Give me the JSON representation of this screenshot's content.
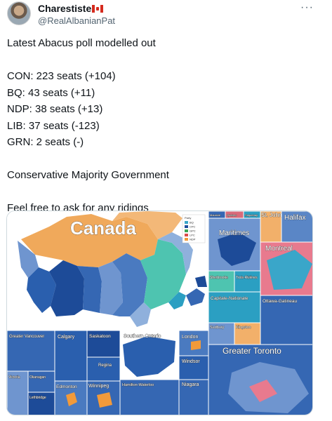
{
  "author": {
    "display_name": "Charestiste",
    "flag_icon": "canada-flag-icon",
    "handle": "@RealAlbanianPat"
  },
  "more_icon": "more-options-icon",
  "tweet": {
    "lines": [
      "Latest Abacus poll modelled out",
      "",
      "CON: 223 seats (+104)",
      "BQ: 43 seats (+11)",
      "NDP: 38 seats (+13)",
      "LIB: 37 seats (-123)",
      "GRN: 2 seats (-)",
      "",
      "Conservative Majority Government",
      "",
      "Feel free to ask for any ridings"
    ]
  },
  "map": {
    "main_title": "Canada",
    "legend": {
      "title": "Party",
      "entries": [
        "BQ",
        "CPC",
        "GPC",
        "LPC",
        "NDP"
      ],
      "colors": [
        "#3aa6c9",
        "#1f4f9c",
        "#3aa655",
        "#d94b4b",
        "#f29a3a"
      ]
    },
    "insets": {
      "top_small": [
        "Mauricie",
        "Quebec",
        "Saguenay"
      ],
      "st_johns": "St. John's",
      "halifax": "Halifax",
      "maritimes": "Maritimes",
      "montreal": "Montreal",
      "sherbrooke": "Sherbrooke",
      "trois_rivieres": "Trois-Rivières",
      "capitale_nationale": "Capitale-Nationale",
      "ottawa_gatineau": "Ottawa-Gatineau",
      "sudbury": "Sudbury",
      "kingston": "Kingston",
      "greater_vancouver": "Greater Vancouver",
      "calgary": "Calgary",
      "saskatoon": "Saskatoon",
      "regina": "Regina",
      "victoria": "Victoria",
      "okanagan": "Okanagan",
      "lethbridge": "Lethbridge",
      "edmonton": "Edmonton",
      "winnipeg": "Winnipeg",
      "southern_ontario": "Southern Ontario",
      "hamilton_waterloo": "Hamilton-Waterloo",
      "london": "London",
      "windsor": "Windsor",
      "niagara": "Niagara",
      "greater_toronto": "Greater Toronto"
    }
  }
}
